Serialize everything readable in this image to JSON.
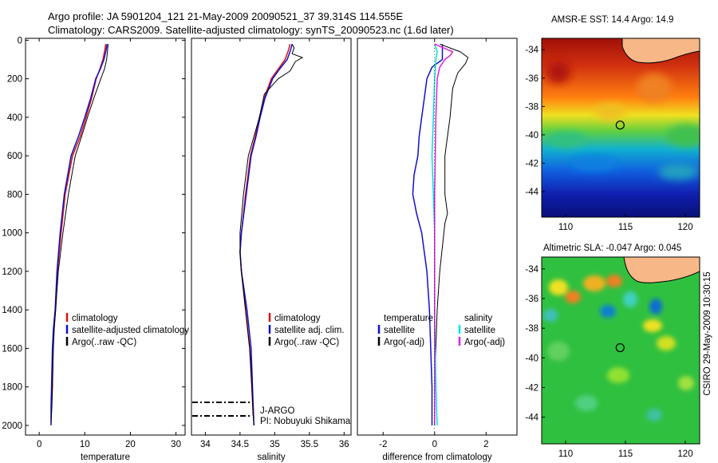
{
  "header": {
    "line1": "Argo profile: JA 5901204_121 21-May-2009 20090521_37 39.314S 114.555E",
    "line2": "Climatology: CARS2009. Satellite-adjusted climatology: synTS_20090523.nc (1.6d later)"
  },
  "map_titles": {
    "sst": "AMSR-E SST: 14.4 Argo: 14.9",
    "sla": "Altimetric SLA: -0.047 Argo: 0.045"
  },
  "stamp": "CSIRO 29-May-2009 10:30:15",
  "colors": {
    "climatology": "#e01010",
    "satellite": "#1010d0",
    "argo": "#000000",
    "sal_satellite": "#00e0e0",
    "sal_argo": "#e020e0"
  },
  "chart_data": [
    {
      "type": "line",
      "xlabel": "temperature",
      "ylabel": "",
      "xlim": [
        -3,
        32
      ],
      "ylim": [
        2050,
        -10
      ],
      "xticks": [
        0,
        10,
        20,
        30
      ],
      "yticks": [
        0,
        200,
        400,
        600,
        800,
        1000,
        1200,
        1400,
        1600,
        1800,
        2000
      ],
      "legend": [
        "climatology",
        "satellite-adjusted climatology",
        "Argo(..raw -QC)"
      ],
      "series": [
        {
          "name": "climatology",
          "color": "#e01010",
          "width": 1.5,
          "x": [
            14.6,
            14.4,
            14.0,
            13.3,
            12.5,
            11.5,
            10.3,
            9.0,
            7.3,
            5.7,
            4.8,
            4.0,
            3.6,
            3.2,
            3.0,
            2.9,
            2.7
          ],
          "y": [
            20,
            50,
            100,
            150,
            200,
            300,
            400,
            500,
            600,
            800,
            1000,
            1200,
            1400,
            1500,
            1600,
            1800,
            1890
          ]
        },
        {
          "name": "satellite-adjusted climatology",
          "color": "#1010d0",
          "width": 1.5,
          "x": [
            14.9,
            14.7,
            14.2,
            13.4,
            12.4,
            11.3,
            10.0,
            8.6,
            7.0,
            5.5,
            4.6,
            3.9,
            3.5,
            3.1,
            2.9,
            2.7,
            2.6,
            2.6
          ],
          "y": [
            20,
            50,
            100,
            150,
            200,
            300,
            400,
            500,
            600,
            800,
            1000,
            1200,
            1400,
            1500,
            1600,
            1800,
            1900,
            2000
          ]
        },
        {
          "name": "Argo(..raw -QC)",
          "color": "#000000",
          "width": 1,
          "x": [
            15.1,
            15.0,
            14.8,
            14.3,
            13.5,
            12.0,
            10.6,
            9.3,
            7.9,
            6.4,
            5.2,
            4.2,
            3.6,
            3.3,
            3.1,
            2.9,
            2.8,
            2.6
          ],
          "y": [
            20,
            50,
            100,
            150,
            200,
            300,
            400,
            500,
            600,
            800,
            1000,
            1200,
            1400,
            1500,
            1600,
            1800,
            1900,
            1990
          ]
        }
      ]
    },
    {
      "type": "line",
      "xlabel": "salinity",
      "ylabel": "",
      "xlim": [
        33.8,
        36.1
      ],
      "ylim": [
        2050,
        -10
      ],
      "xticks": [
        34,
        34.5,
        35,
        35.5,
        36
      ],
      "yticks": [],
      "legend": [
        "climatology",
        "satellite adj. clim.",
        "Argo(..raw -QC)"
      ],
      "annotations": [
        "J-ARGO",
        "PI: Nobuyuki Shikama"
      ],
      "series": [
        {
          "name": "climatology",
          "color": "#e01010",
          "width": 1.5,
          "x": [
            35.22,
            35.2,
            35.15,
            35.05,
            34.95,
            34.85,
            34.78,
            34.72,
            34.65,
            34.58,
            34.52,
            34.5,
            34.52,
            34.58,
            34.64,
            34.67,
            34.69
          ],
          "y": [
            20,
            50,
            100,
            150,
            200,
            300,
            400,
            500,
            600,
            800,
            1000,
            1100,
            1200,
            1400,
            1600,
            1800,
            1950
          ]
        },
        {
          "name": "satellite adj. clim.",
          "color": "#1010d0",
          "width": 1.5,
          "x": [
            35.25,
            35.23,
            35.18,
            35.07,
            34.97,
            34.86,
            34.79,
            34.73,
            34.66,
            34.59,
            34.52,
            34.5,
            34.52,
            34.6,
            34.66,
            34.68,
            34.7
          ],
          "y": [
            20,
            50,
            100,
            150,
            200,
            300,
            400,
            500,
            600,
            800,
            1000,
            1100,
            1200,
            1400,
            1600,
            1800,
            2000
          ]
        },
        {
          "name": "Argo(..raw -QC)",
          "color": "#000000",
          "width": 1,
          "x": [
            35.25,
            35.28,
            35.25,
            35.4,
            35.3,
            35.22,
            35.05,
            34.85,
            34.78,
            34.7,
            34.62,
            34.55,
            34.5,
            34.5,
            34.52,
            34.58,
            34.64,
            34.67,
            34.69,
            34.7
          ],
          "y": [
            20,
            40,
            70,
            90,
            110,
            160,
            200,
            280,
            400,
            500,
            600,
            800,
            1000,
            1100,
            1200,
            1400,
            1600,
            1800,
            1950,
            2000
          ]
        }
      ]
    },
    {
      "type": "line",
      "xlabel": "difference from climatology",
      "ylabel": "",
      "xlim": [
        -3,
        3.2
      ],
      "ylim": [
        2050,
        -10
      ],
      "xticks": [
        -2,
        0,
        2
      ],
      "yticks": [],
      "legend_headers": [
        "temperature",
        "salinity"
      ],
      "legend": [
        "satellite",
        "Argo(-adj)",
        "satellite",
        "Argo(-adj)"
      ],
      "series": [
        {
          "name": "satellite",
          "group": "temperature",
          "color": "#1010d0",
          "width": 1.5,
          "x": [
            0.3,
            0.3,
            0.3,
            -0.1,
            -0.3,
            -0.4,
            -0.5,
            -0.6,
            -0.65,
            -0.8,
            -0.85,
            -0.7,
            -0.5,
            -0.3,
            -0.2,
            -0.15,
            -0.1,
            -0.1
          ],
          "y": [
            20,
            60,
            100,
            140,
            200,
            300,
            400,
            500,
            600,
            700,
            800,
            900,
            1000,
            1200,
            1400,
            1600,
            1800,
            2000
          ]
        },
        {
          "name": "Argo(-adj)",
          "group": "temperature",
          "color": "#000000",
          "width": 1,
          "x": [
            0.2,
            0.6,
            1.0,
            1.3,
            1.2,
            0.9,
            0.7,
            0.6,
            0.5,
            0.4,
            0.4,
            0.5,
            0.4,
            0.2,
            0.1,
            0.05,
            0.0,
            0.0
          ],
          "y": [
            20,
            40,
            60,
            90,
            120,
            170,
            250,
            400,
            500,
            600,
            800,
            900,
            950,
            1200,
            1400,
            1600,
            1800,
            2000
          ]
        },
        {
          "name": "satellite",
          "group": "salinity",
          "color": "#00e0e0",
          "width": 1.5,
          "x": [
            0.0,
            0.1,
            0.05,
            0.0,
            -0.05,
            -0.1,
            -0.05,
            0.0,
            0.0,
            0.05,
            0.1
          ],
          "y": [
            20,
            60,
            100,
            200,
            400,
            600,
            800,
            1000,
            1400,
            1800,
            2000
          ]
        },
        {
          "name": "Argo(-adj)",
          "group": "salinity",
          "color": "#e020e0",
          "width": 1.5,
          "x": [
            0.0,
            0.7,
            0.6,
            0.4,
            0.2,
            0.1,
            0.05,
            0.0,
            0.0,
            0.0
          ],
          "y": [
            20,
            60,
            80,
            100,
            140,
            200,
            400,
            800,
            1400,
            1990
          ]
        }
      ]
    }
  ],
  "maps": {
    "sst": {
      "xlim": [
        108,
        121.2
      ],
      "ylim": [
        -45.8,
        -33.2
      ],
      "xticks": [
        110,
        115,
        120
      ],
      "yticks": [
        -34,
        -36,
        -38,
        -40,
        -42,
        -44
      ],
      "argo_point": {
        "lon": 114.555,
        "lat": -39.314
      }
    },
    "sla": {
      "xlim": [
        108,
        121.2
      ],
      "ylim": [
        -45.8,
        -33.2
      ],
      "xticks": [
        110,
        115,
        120
      ],
      "yticks": [
        -34,
        -36,
        -38,
        -40,
        -42,
        -44
      ],
      "argo_point": {
        "lon": 114.555,
        "lat": -39.314
      }
    }
  }
}
